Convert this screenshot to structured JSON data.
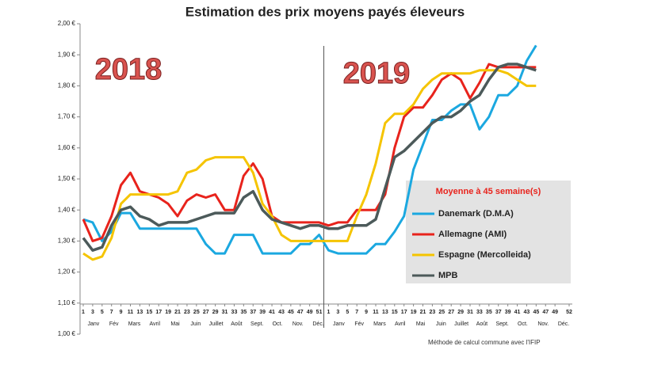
{
  "chart_data": {
    "type": "line",
    "title": "Estimation des prix moyens payés éleveurs",
    "annotations": [
      "2018",
      "2019"
    ],
    "months": [
      "Janv",
      "Fév",
      "Mars",
      "Avril",
      "Mai",
      "Juin",
      "Juillet",
      "Août",
      "Sept.",
      "Oct.",
      "Nov.",
      "Déc."
    ],
    "legend_title": "Moyenne à  45 semaine(s)",
    "footnote": "Méthode de calcul commune avec l'IFIP",
    "x": [
      1,
      3,
      5,
      7,
      9,
      11,
      13,
      15,
      17,
      19,
      21,
      23,
      25,
      27,
      29,
      31,
      33,
      35,
      37,
      39,
      41,
      43,
      45,
      47,
      49,
      51,
      53,
      55,
      57,
      59,
      61,
      63,
      65,
      67,
      69,
      71,
      73,
      75,
      77,
      79,
      81,
      83,
      85,
      87,
      89,
      91,
      93,
      95,
      97
    ],
    "xlim": [
      1,
      104
    ],
    "xticks": [
      1,
      3,
      5,
      7,
      9,
      11,
      13,
      15,
      17,
      19,
      21,
      23,
      25,
      27,
      29,
      31,
      33,
      35,
      37,
      39,
      41,
      43,
      45,
      47,
      49,
      51,
      {
        "value": 53,
        "label": "1"
      },
      {
        "value": 55,
        "label": "3"
      },
      {
        "value": 57,
        "label": "5"
      },
      {
        "value": 59,
        "label": "7"
      },
      {
        "value": 61,
        "label": "9"
      },
      {
        "value": 63,
        "label": "11"
      },
      {
        "value": 65,
        "label": "13"
      },
      {
        "value": 67,
        "label": "15"
      },
      {
        "value": 69,
        "label": "17"
      },
      {
        "value": 71,
        "label": "19"
      },
      {
        "value": 73,
        "label": "21"
      },
      {
        "value": 75,
        "label": "23"
      },
      {
        "value": 77,
        "label": "25"
      },
      {
        "value": 79,
        "label": "27"
      },
      {
        "value": 81,
        "label": "29"
      },
      {
        "value": 83,
        "label": "31"
      },
      {
        "value": 85,
        "label": "33"
      },
      {
        "value": 87,
        "label": "35"
      },
      {
        "value": 89,
        "label": "37"
      },
      {
        "value": 91,
        "label": "39"
      },
      {
        "value": 93,
        "label": "41"
      },
      {
        "value": 95,
        "label": "43"
      },
      {
        "value": 97,
        "label": "45"
      },
      {
        "value": 99,
        "label": "47"
      },
      {
        "value": 101,
        "label": "49"
      },
      {
        "value": 104,
        "label": "52"
      }
    ],
    "ylim": [
      1.0,
      2.0
    ],
    "yticks": [
      {
        "value": 1.0,
        "label": "1,00 €"
      },
      {
        "value": 1.1,
        "label": "1,10 €"
      },
      {
        "value": 1.2,
        "label": "1,20 €"
      },
      {
        "value": 1.3,
        "label": "1,30 €"
      },
      {
        "value": 1.4,
        "label": "1,40 €"
      },
      {
        "value": 1.5,
        "label": "1,50 €"
      },
      {
        "value": 1.6,
        "label": "1,60 €"
      },
      {
        "value": 1.7,
        "label": "1,70 €"
      },
      {
        "value": 1.8,
        "label": "1,80 €"
      },
      {
        "value": 1.9,
        "label": "1,90 €"
      },
      {
        "value": 2.0,
        "label": "2,00 €"
      }
    ],
    "grid": false,
    "legend": "right",
    "series": [
      {
        "name": "Danemark (D.M.A)",
        "color": "#1ba8e0",
        "values": [
          1.37,
          1.36,
          1.3,
          1.33,
          1.39,
          1.39,
          1.34,
          1.34,
          1.34,
          1.34,
          1.34,
          1.34,
          1.34,
          1.29,
          1.26,
          1.26,
          1.32,
          1.32,
          1.32,
          1.26,
          1.26,
          1.26,
          1.26,
          1.29,
          1.29,
          1.32,
          1.27,
          1.26,
          1.26,
          1.26,
          1.26,
          1.29,
          1.29,
          1.33,
          1.38,
          1.53,
          1.61,
          1.69,
          1.69,
          1.72,
          1.74,
          1.74,
          1.66,
          1.7,
          1.77,
          1.77,
          1.8,
          1.88,
          1.93
        ]
      },
      {
        "name": "Allemagne (AMI)",
        "color": "#e8231c",
        "values": [
          1.37,
          1.3,
          1.31,
          1.38,
          1.48,
          1.52,
          1.46,
          1.45,
          1.44,
          1.42,
          1.38,
          1.43,
          1.45,
          1.44,
          1.45,
          1.4,
          1.4,
          1.51,
          1.55,
          1.5,
          1.38,
          1.36,
          1.36,
          1.36,
          1.36,
          1.36,
          1.35,
          1.36,
          1.36,
          1.4,
          1.4,
          1.4,
          1.45,
          1.6,
          1.7,
          1.73,
          1.73,
          1.77,
          1.82,
          1.84,
          1.82,
          1.76,
          1.81,
          1.87,
          1.86,
          1.86,
          1.86,
          1.86,
          1.86
        ]
      },
      {
        "name": "Espagne (Mercolleida)",
        "color": "#f5c400",
        "values": [
          1.26,
          1.24,
          1.25,
          1.31,
          1.42,
          1.45,
          1.45,
          1.45,
          1.45,
          1.45,
          1.46,
          1.52,
          1.53,
          1.56,
          1.57,
          1.57,
          1.57,
          1.57,
          1.52,
          1.42,
          1.38,
          1.32,
          1.3,
          1.3,
          1.3,
          1.3,
          1.3,
          1.3,
          1.3,
          1.38,
          1.45,
          1.55,
          1.68,
          1.71,
          1.71,
          1.74,
          1.79,
          1.82,
          1.84,
          1.84,
          1.84,
          1.84,
          1.85,
          1.85,
          1.85,
          1.84,
          1.82,
          1.8,
          1.8
        ]
      },
      {
        "name": "MPB",
        "color": "#4c5a5a",
        "values": [
          1.31,
          1.27,
          1.28,
          1.35,
          1.4,
          1.41,
          1.38,
          1.37,
          1.35,
          1.36,
          1.36,
          1.36,
          1.37,
          1.38,
          1.39,
          1.39,
          1.39,
          1.44,
          1.46,
          1.4,
          1.37,
          1.36,
          1.35,
          1.34,
          1.35,
          1.35,
          1.34,
          1.34,
          1.35,
          1.35,
          1.35,
          1.37,
          1.47,
          1.57,
          1.59,
          1.62,
          1.65,
          1.68,
          1.7,
          1.7,
          1.72,
          1.75,
          1.77,
          1.82,
          1.86,
          1.87,
          1.87,
          1.86,
          1.85
        ]
      }
    ]
  }
}
